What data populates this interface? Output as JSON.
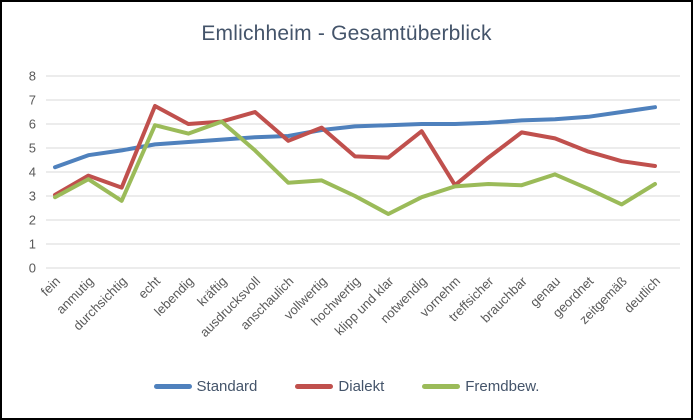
{
  "window": {
    "title": "Emlichheim - Gesamtüberblick"
  },
  "chart_data": {
    "type": "line",
    "title": "Emlichheim - Gesamtüberblick",
    "categories": [
      "fein",
      "anmutig",
      "durchsichtig",
      "echt",
      "lebendig",
      "kräftig",
      "ausdrucksvoll",
      "anschaulich",
      "vollwertig",
      "hochwertig",
      "klipp und klar",
      "notwendig",
      "vornehm",
      "treffsicher",
      "brauchbar",
      "genau",
      "geordnet",
      "zeitgemäß",
      "deutlich"
    ],
    "series": [
      {
        "name": "Standard",
        "color": "#4f81bd",
        "values": [
          4.2,
          4.7,
          4.9,
          5.15,
          5.25,
          5.35,
          5.45,
          5.5,
          5.75,
          5.9,
          5.95,
          6.0,
          6.0,
          6.05,
          6.15,
          6.2,
          6.3,
          6.5,
          6.7
        ]
      },
      {
        "name": "Dialekt",
        "color": "#c0504d",
        "values": [
          3.05,
          3.85,
          3.35,
          6.75,
          6.0,
          6.1,
          6.5,
          5.3,
          5.85,
          4.65,
          4.6,
          5.7,
          3.45,
          4.6,
          5.65,
          5.4,
          4.85,
          4.45,
          4.25
        ]
      },
      {
        "name": "Fremdbew.",
        "color": "#9bbb59",
        "values": [
          2.95,
          3.7,
          2.8,
          5.95,
          5.6,
          6.1,
          4.9,
          3.55,
          3.65,
          3.0,
          2.25,
          2.95,
          3.4,
          3.5,
          3.45,
          3.9,
          3.3,
          2.65,
          3.5
        ]
      }
    ],
    "ylim": [
      0,
      8
    ],
    "yticks": [
      0,
      1,
      2,
      3,
      4,
      5,
      6,
      7,
      8
    ],
    "xlabel": "",
    "ylabel": "",
    "grid": "horizontal",
    "x_label_rotation_deg": 45,
    "legend_position": "bottom"
  },
  "colors": {
    "grid_line": "#d9d9d9",
    "axis_text": "#595959",
    "title_text": "#44546a",
    "legend_text": "#44546a",
    "background": "#ffffff",
    "frame_border": "#000000"
  }
}
